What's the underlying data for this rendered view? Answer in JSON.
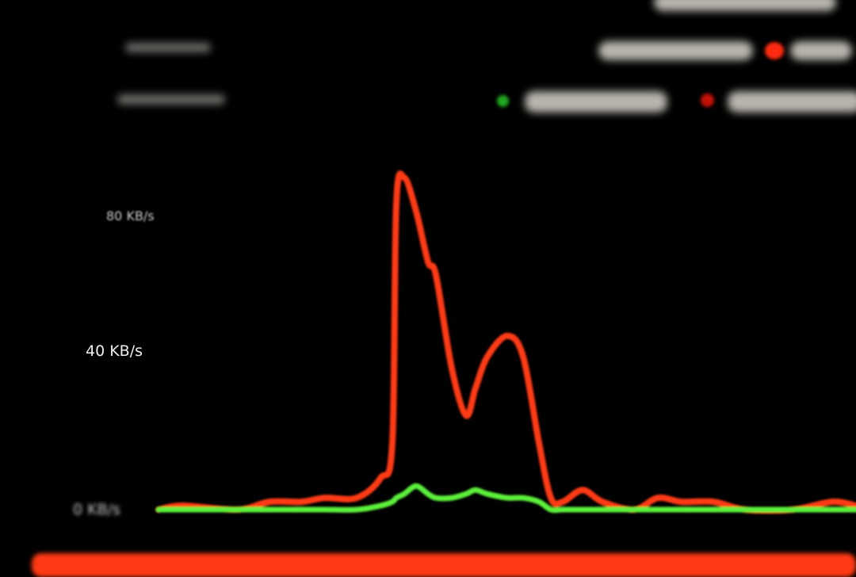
{
  "chart_data": {
    "type": "line",
    "title": "",
    "xlabel": "",
    "ylabel": "",
    "y_ticks": [
      "80 KB/s",
      "40 KB/s",
      "0 KB/s"
    ],
    "ylim": [
      0,
      95
    ],
    "grid": false,
    "legend": "top-right",
    "x": [
      0,
      3,
      10,
      14,
      18,
      21,
      25,
      28,
      29.5,
      30,
      31,
      32.5,
      34,
      35,
      37,
      38.8,
      40,
      41.5,
      44,
      46,
      48,
      49.5,
      51,
      53.5,
      56,
      60,
      63,
      66,
      70,
      74,
      80,
      85,
      88
    ],
    "series": [
      {
        "color": "#ff3a14",
        "values": [
          0,
          1,
          0,
          2,
          2,
          3,
          3,
          8,
          17,
          84,
          92,
          82,
          67,
          63,
          36,
          24,
          31,
          39,
          45,
          39,
          17,
          3,
          2,
          5,
          2,
          0,
          3,
          2,
          2,
          0,
          0,
          2,
          1
        ]
      },
      {
        "color": "#5cf03a",
        "values": [
          0,
          0,
          0,
          0,
          0,
          0,
          0,
          1,
          2,
          3,
          4,
          6,
          4,
          3,
          3,
          4,
          5,
          4,
          3,
          3,
          2,
          0,
          0,
          0,
          0,
          0,
          0,
          0,
          0,
          0,
          0,
          0,
          0
        ]
      }
    ]
  },
  "colors": {
    "background": "#000000",
    "upload": "#5cf03a",
    "download": "#ff3a14",
    "bottom_bar": "#ff3a14"
  }
}
